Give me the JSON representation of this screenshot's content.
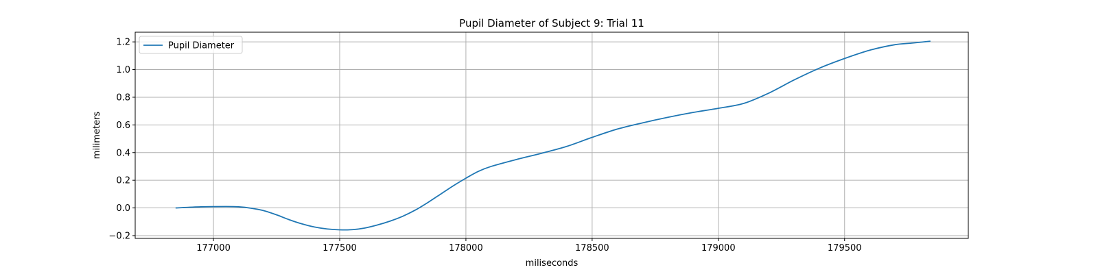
{
  "chart_data": {
    "type": "line",
    "title": "Pupil Diameter of Subject 9: Trial 11",
    "xlabel": "miliseconds",
    "ylabel": "milimeters",
    "xlim": [
      176690,
      179990
    ],
    "ylim": [
      -0.22,
      1.27
    ],
    "x_ticks": [
      177000,
      177500,
      178000,
      178500,
      179000,
      179500
    ],
    "y_ticks": [
      -0.2,
      0.0,
      0.2,
      0.4,
      0.6,
      0.8,
      1.0,
      1.2
    ],
    "x_tick_labels": [
      "177000",
      "177500",
      "178000",
      "178500",
      "179000",
      "179500"
    ],
    "y_tick_labels": [
      "−0.2",
      "0.0",
      "0.2",
      "0.4",
      "0.6",
      "0.8",
      "1.0",
      "1.2"
    ],
    "grid": true,
    "legend_position": "top-left",
    "series": [
      {
        "name": "Pupil Diameter",
        "color": "#1f77b4",
        "x": [
          176850,
          176950,
          177050,
          177100,
          177150,
          177200,
          177250,
          177300,
          177350,
          177400,
          177450,
          177500,
          177550,
          177600,
          177650,
          177700,
          177750,
          177800,
          177850,
          177900,
          177950,
          178000,
          178050,
          178100,
          178200,
          178300,
          178400,
          178500,
          178600,
          178700,
          178800,
          178900,
          179000,
          179100,
          179200,
          179300,
          179400,
          179500,
          179600,
          179700,
          179760,
          179840
        ],
        "y": [
          0.0,
          0.008,
          0.01,
          0.008,
          -0.002,
          -0.02,
          -0.05,
          -0.085,
          -0.115,
          -0.138,
          -0.152,
          -0.158,
          -0.157,
          -0.145,
          -0.123,
          -0.095,
          -0.06,
          -0.015,
          0.04,
          0.1,
          0.16,
          0.215,
          0.265,
          0.3,
          0.35,
          0.395,
          0.445,
          0.51,
          0.57,
          0.615,
          0.655,
          0.69,
          0.72,
          0.755,
          0.83,
          0.925,
          1.01,
          1.08,
          1.14,
          1.18,
          1.19,
          1.205
        ]
      }
    ]
  }
}
